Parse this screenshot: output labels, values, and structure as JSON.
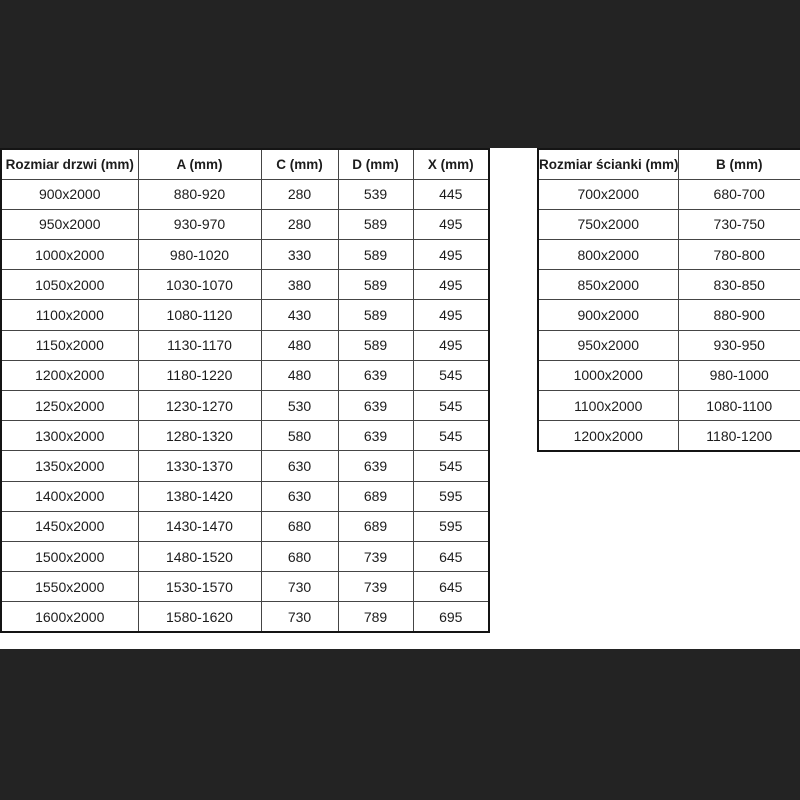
{
  "colors": {
    "background": "#232323",
    "panel": "#ffffff",
    "outer_border": "#141414",
    "grid_line": "#454545",
    "text": "#1c1c1c"
  },
  "left_table": {
    "name": "door-sizes",
    "headers": [
      "Rozmiar drzwi (mm)",
      "A (mm)",
      "C (mm)",
      "D (mm)",
      "X (mm)"
    ],
    "rows": [
      [
        "900x2000",
        "880-920",
        "280",
        "539",
        "445"
      ],
      [
        "950x2000",
        "930-970",
        "280",
        "589",
        "495"
      ],
      [
        "1000x2000",
        "980-1020",
        "330",
        "589",
        "495"
      ],
      [
        "1050x2000",
        "1030-1070",
        "380",
        "589",
        "495"
      ],
      [
        "1100x2000",
        "1080-1120",
        "430",
        "589",
        "495"
      ],
      [
        "1150x2000",
        "1130-1170",
        "480",
        "589",
        "495"
      ],
      [
        "1200x2000",
        "1180-1220",
        "480",
        "639",
        "545"
      ],
      [
        "1250x2000",
        "1230-1270",
        "530",
        "639",
        "545"
      ],
      [
        "1300x2000",
        "1280-1320",
        "580",
        "639",
        "545"
      ],
      [
        "1350x2000",
        "1330-1370",
        "630",
        "639",
        "545"
      ],
      [
        "1400x2000",
        "1380-1420",
        "630",
        "689",
        "595"
      ],
      [
        "1450x2000",
        "1430-1470",
        "680",
        "689",
        "595"
      ],
      [
        "1500x2000",
        "1480-1520",
        "680",
        "739",
        "645"
      ],
      [
        "1550x2000",
        "1530-1570",
        "730",
        "739",
        "645"
      ],
      [
        "1600x2000",
        "1580-1620",
        "730",
        "789",
        "695"
      ]
    ]
  },
  "right_table": {
    "name": "wall-panel-sizes",
    "headers": [
      "Rozmiar ścianki (mm)",
      "B (mm)"
    ],
    "rows": [
      [
        "700x2000",
        "680-700"
      ],
      [
        "750x2000",
        "730-750"
      ],
      [
        "800x2000",
        "780-800"
      ],
      [
        "850x2000",
        "830-850"
      ],
      [
        "900x2000",
        "880-900"
      ],
      [
        "950x2000",
        "930-950"
      ],
      [
        "1000x2000",
        "980-1000"
      ],
      [
        "1100x2000",
        "1080-1100"
      ],
      [
        "1200x2000",
        "1180-1200"
      ]
    ]
  }
}
